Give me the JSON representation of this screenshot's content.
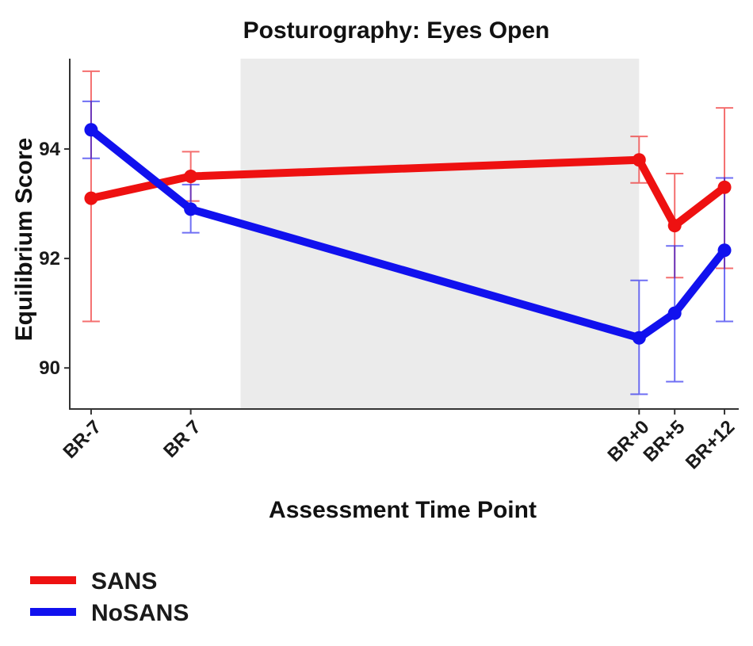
{
  "chart_data": {
    "type": "line",
    "title": "Posturography: Eyes Open",
    "xlabel": "Assessment Time Point",
    "ylabel": "Equilibrium Score",
    "categories": [
      "BR-7",
      "BR 7",
      "BR+0",
      "BR+5",
      "BR+12"
    ],
    "x": [
      -7,
      7,
      70,
      75,
      82
    ],
    "xlim": [
      -10,
      84
    ],
    "ylim": [
      89.25,
      95.65
    ],
    "yticks": [
      90,
      92,
      94
    ],
    "shaded_region": {
      "x_start": 14,
      "x_end": 70,
      "color": "#ebebeb"
    },
    "grid": false,
    "legend_position": "bottom-left",
    "series": [
      {
        "name": "SANS",
        "color": "#ee1111",
        "values": [
          93.1,
          93.5,
          93.8,
          92.6,
          93.3
        ],
        "error_low": [
          90.85,
          93.05,
          93.38,
          91.65,
          91.82
        ],
        "error_high": [
          95.42,
          93.95,
          94.23,
          93.55,
          94.75
        ]
      },
      {
        "name": "NoSANS",
        "color": "#1111ee",
        "values": [
          94.35,
          92.9,
          90.55,
          91.0,
          92.15
        ],
        "error_low": [
          93.83,
          92.47,
          89.52,
          89.75,
          90.85
        ],
        "error_high": [
          94.87,
          93.35,
          91.6,
          92.23,
          93.47
        ]
      }
    ]
  }
}
